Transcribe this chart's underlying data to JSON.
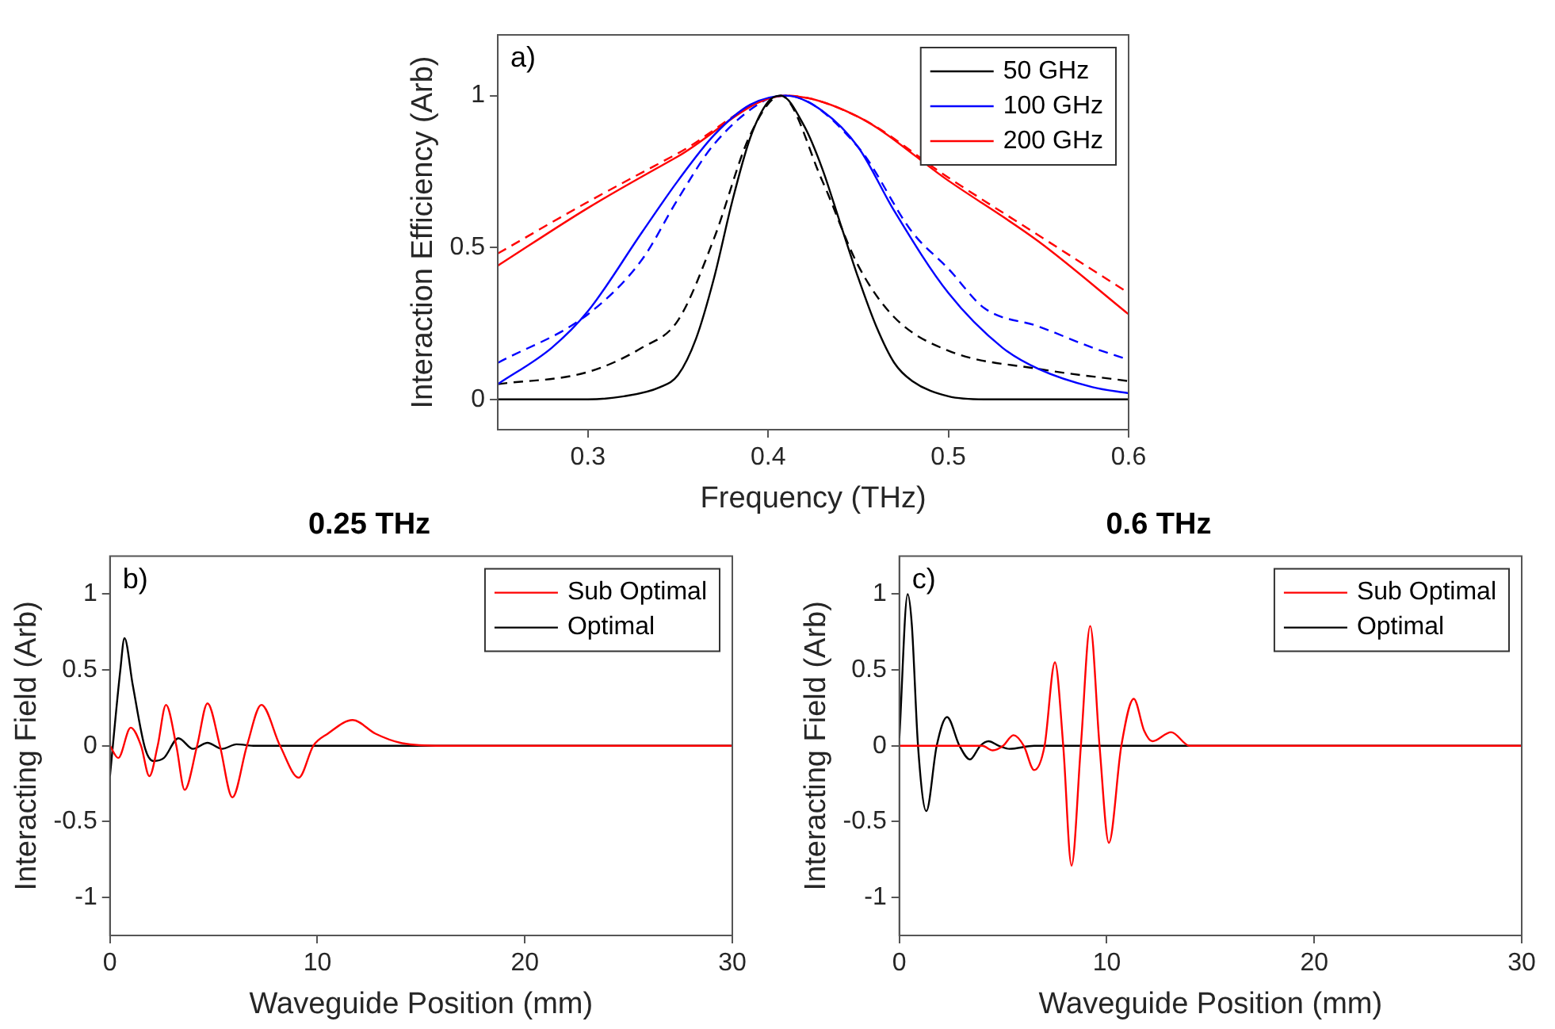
{
  "chart_data": [
    {
      "type": "line",
      "xlabel": "Frequency (THz)",
      "ylabel": "Interaction Efficiency (Arb)",
      "xlim": [
        0.25,
        0.6
      ],
      "xticks": [
        0.3,
        0.4,
        0.5,
        0.6
      ],
      "ylim": [
        -0.1,
        1.2
      ],
      "yticks": [
        0,
        0.5,
        1
      ],
      "legend": "top right",
      "marker": "none",
      "annotations": [
        "a)"
      ],
      "series": [
        {
          "name": "50 GHz",
          "color": "#000000",
          "line_style": "solid",
          "x": [
            0.25,
            0.3,
            0.32,
            0.34,
            0.35,
            0.36,
            0.37,
            0.38,
            0.39,
            0.4,
            0.407,
            0.42,
            0.43,
            0.44,
            0.45,
            0.46,
            0.47,
            0.48,
            0.5,
            0.52,
            0.55,
            0.6
          ],
          "values": [
            0,
            0,
            0.01,
            0.04,
            0.08,
            0.2,
            0.4,
            0.65,
            0.86,
            0.98,
            1,
            0.9,
            0.76,
            0.58,
            0.4,
            0.24,
            0.12,
            0.06,
            0.01,
            0,
            0,
            0
          ]
        },
        {
          "name": "100 GHz",
          "color": "#0000ff",
          "line_style": "solid",
          "x": [
            0.25,
            0.28,
            0.3,
            0.33,
            0.35,
            0.37,
            0.39,
            0.41,
            0.43,
            0.45,
            0.47,
            0.5,
            0.53,
            0.55,
            0.58,
            0.6
          ],
          "values": [
            0.05,
            0.17,
            0.29,
            0.55,
            0.72,
            0.87,
            0.97,
            1,
            0.95,
            0.83,
            0.62,
            0.35,
            0.17,
            0.1,
            0.04,
            0.02
          ]
        },
        {
          "name": "200 GHz",
          "color": "#ff0000",
          "line_style": "solid",
          "x": [
            0.25,
            0.3,
            0.35,
            0.41,
            0.45,
            0.5,
            0.55,
            0.6
          ],
          "values": [
            0.44,
            0.63,
            0.8,
            1,
            0.93,
            0.72,
            0.52,
            0.28
          ]
        },
        {
          "color": "#000000",
          "line_style": "dashed",
          "x": [
            0.25,
            0.3,
            0.33,
            0.35,
            0.37,
            0.39,
            0.407,
            0.43,
            0.45,
            0.47,
            0.5,
            0.55,
            0.6
          ],
          "values": [
            0.05,
            0.09,
            0.17,
            0.26,
            0.53,
            0.87,
            1,
            0.72,
            0.44,
            0.27,
            0.16,
            0.1,
            0.06
          ]
        },
        {
          "color": "#0000ff",
          "line_style": "dashed",
          "x": [
            0.25,
            0.3,
            0.33,
            0.35,
            0.37,
            0.4,
            0.41,
            0.45,
            0.48,
            0.5,
            0.52,
            0.55,
            0.58,
            0.6
          ],
          "values": [
            0.12,
            0.28,
            0.46,
            0.66,
            0.84,
            0.99,
            1,
            0.83,
            0.55,
            0.43,
            0.3,
            0.24,
            0.17,
            0.13
          ]
        },
        {
          "color": "#ff0000",
          "line_style": "dashed",
          "x": [
            0.25,
            0.3,
            0.35,
            0.41,
            0.45,
            0.5,
            0.55,
            0.6
          ],
          "values": [
            0.48,
            0.65,
            0.81,
            1,
            0.93,
            0.73,
            0.54,
            0.35
          ]
        }
      ]
    },
    {
      "type": "line",
      "title": "0.25 THz",
      "xlabel": "Waveguide Position (mm)",
      "ylabel": "Interacting Field (Arb)",
      "xlim": [
        0,
        30
      ],
      "xticks": [
        0,
        10,
        20,
        30
      ],
      "ylim": [
        -1.25,
        1.25
      ],
      "yticks": [
        -1,
        -0.5,
        0,
        0.5,
        1
      ],
      "legend": "top right",
      "marker": "none",
      "annotations": [
        "b)"
      ],
      "series": [
        {
          "name": "Sub Optimal",
          "color": "#ff0000",
          "x": [
            0,
            0.4,
            1.0,
            1.5,
            1.9,
            2.3,
            2.7,
            3.2,
            3.6,
            4.2,
            4.7,
            5.3,
            5.9,
            6.6,
            7.3,
            8.2,
            9.1,
            9.8,
            10.5,
            11.7,
            12.8,
            14.0,
            16,
            30
          ],
          "values": [
            0,
            -0.08,
            0.12,
            0,
            -0.2,
            0,
            0.27,
            0,
            -0.29,
            0,
            0.28,
            0,
            -0.34,
            0,
            0.27,
            0,
            -0.21,
            0,
            0.08,
            0.17,
            0.08,
            0.02,
            0,
            0
          ]
        },
        {
          "name": "Optimal",
          "color": "#000000",
          "x": [
            0,
            0.5,
            0.7,
            1.1,
            1.7,
            2.1,
            2.6,
            3.3,
            4.0,
            4.7,
            5.4,
            6.1,
            7,
            30
          ],
          "values": [
            -0.2,
            0.5,
            0.71,
            0.4,
            -0.02,
            -0.1,
            -0.08,
            0.05,
            -0.02,
            0.02,
            -0.02,
            0.01,
            0,
            0
          ]
        }
      ]
    },
    {
      "type": "line",
      "title": "0.6 THz",
      "xlabel": "Waveguide Position (mm)",
      "ylabel": "Interacting Field (Arb)",
      "xlim": [
        0,
        30
      ],
      "xticks": [
        0,
        10,
        20,
        30
      ],
      "ylim": [
        -1.25,
        1.25
      ],
      "yticks": [
        -1,
        -0.5,
        0,
        0.5,
        1
      ],
      "legend": "top right",
      "marker": "none",
      "annotations": [
        "c)"
      ],
      "series": [
        {
          "name": "Sub Optimal",
          "color": "#ff0000",
          "x": [
            0,
            4,
            4.5,
            5,
            5.5,
            6,
            6.5,
            7,
            7.5,
            7.9,
            8.3,
            8.75,
            9.2,
            9.65,
            10.1,
            10.7,
            11.3,
            11.8,
            12.2,
            13.1,
            14,
            30
          ],
          "values": [
            0,
            0,
            -0.03,
            0,
            0.07,
            0,
            -0.16,
            0,
            0.55,
            0,
            -0.79,
            0,
            0.79,
            0,
            -0.64,
            0,
            0.31,
            0.1,
            0.03,
            0.09,
            0,
            0
          ]
        },
        {
          "name": "Optimal",
          "color": "#000000",
          "x": [
            0,
            0.4,
            0.6,
            0.9,
            1.3,
            1.8,
            2.3,
            2.9,
            3.4,
            3.9,
            4.3,
            4.8,
            5.3,
            6.5,
            30
          ],
          "values": [
            0.05,
            1,
            0.8,
            0,
            -0.43,
            0,
            0.19,
            0,
            -0.09,
            0,
            0.03,
            0,
            -0.02,
            0,
            0
          ]
        }
      ]
    }
  ]
}
